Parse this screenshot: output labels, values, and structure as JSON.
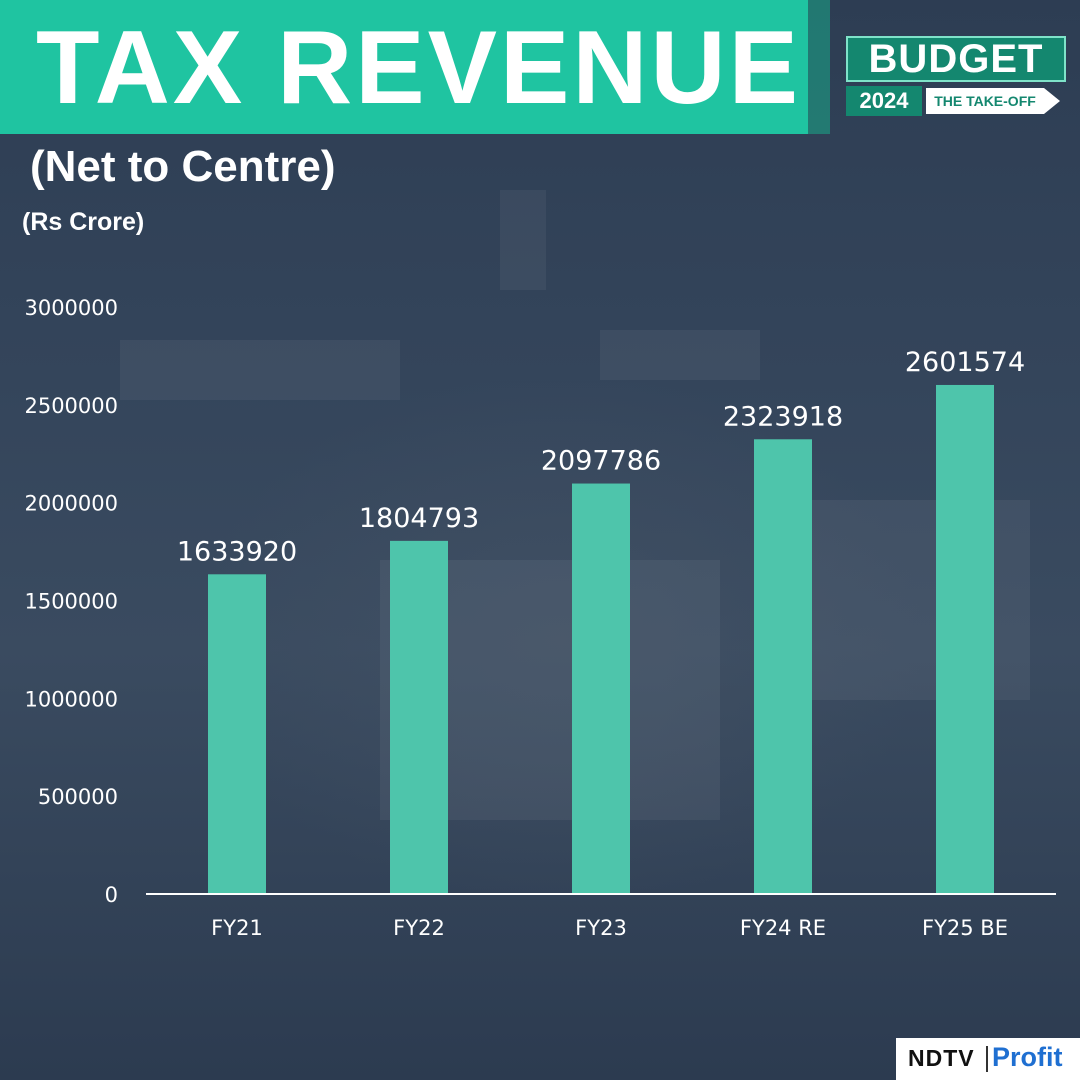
{
  "header": {
    "title": "TAX REVENUE",
    "subtitle": "(Net to Centre)",
    "unit": "(Rs Crore)"
  },
  "badge": {
    "main": "BUDGET",
    "year": "2024",
    "tagline": "THE TAKE-OFF"
  },
  "branding": {
    "logo_left": "NDTV",
    "logo_right": "Profit"
  },
  "colors": {
    "accent": "#1fc4a1",
    "bar": "#4ec5ab",
    "background": "#2f3f55"
  },
  "chart_data": {
    "type": "bar",
    "title": "TAX REVENUE",
    "subtitle": "(Net to Centre)",
    "xlabel": "",
    "ylabel": "(Rs Crore)",
    "categories": [
      "FY21",
      "FY22",
      "FY23",
      "FY24 RE",
      "FY25 BE"
    ],
    "values": [
      1633920,
      1804793,
      2097786,
      2323918,
      2601574
    ],
    "data_labels": [
      "1633920",
      "1804793",
      "2097786",
      "2323918",
      "2601574"
    ],
    "y_ticks": [
      0,
      500000,
      1000000,
      1500000,
      2000000,
      2500000,
      3000000
    ],
    "ylim": [
      0,
      3000000
    ],
    "grid": false,
    "legend": "none"
  }
}
